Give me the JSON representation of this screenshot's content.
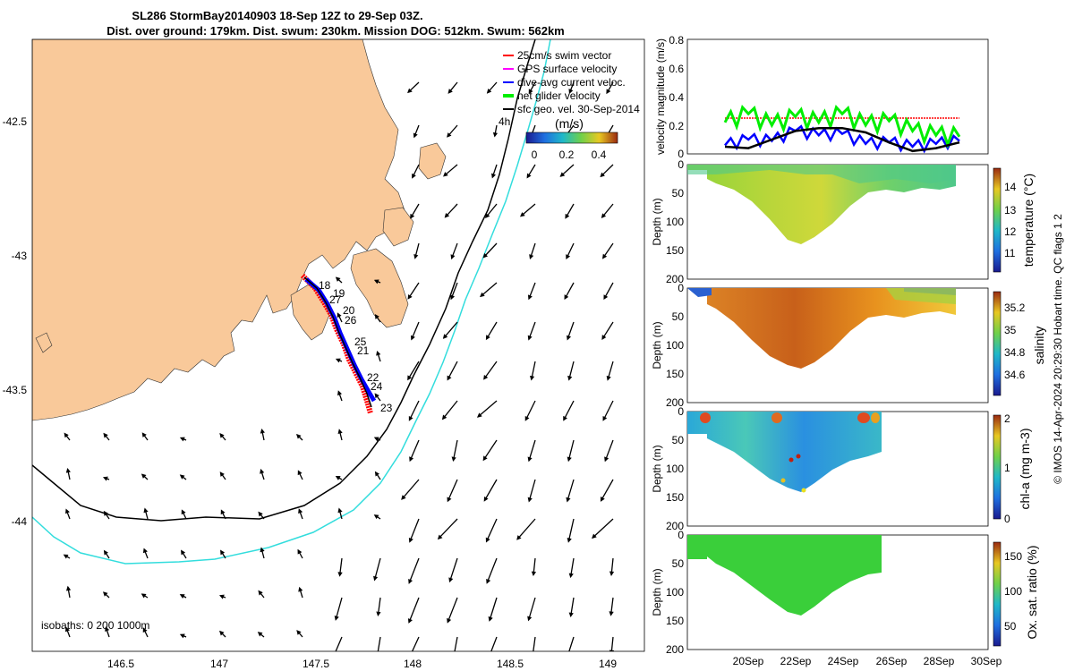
{
  "title": {
    "line1": "SL286 StormBay20140903 18-Sep 12Z to 29-Sep 03Z.",
    "line2": "Dist. over ground: 179km. Dist. swum: 230km. Mission DOG: 512km. Swum: 562km"
  },
  "colors": {
    "land": "#f9c99a",
    "swim_vector": "#ff0000",
    "gps_velocity": "#ff00ff",
    "current": "#0000ff",
    "net_velocity": "#00ee00",
    "geo_velocity": "#000000",
    "isobath_200": "#000000",
    "isobath_1000": "#33dddd"
  },
  "map": {
    "xticks": [
      "146.5",
      "147",
      "147.5",
      "148",
      "148.5",
      "149"
    ],
    "yticks": [
      "-42.5",
      "-43",
      "-43.5",
      "-44"
    ],
    "legend": [
      {
        "label": "25cm/s swim vector",
        "color": "#ff0000"
      },
      {
        "label": "GPS surface velocity",
        "color": "#ff00ff"
      },
      {
        "label": "dive-avg current veloc.",
        "color": "#0000ff"
      },
      {
        "label": "net glider velocity",
        "color": "#00ee00"
      },
      {
        "label": "sfc geo. vel. 30-Sep-2014",
        "color": "#000000"
      }
    ],
    "hours_label": "4h",
    "colorbar_unit": "(m/s)",
    "colorbar_ticks": [
      "0",
      "0.2",
      "0.4"
    ],
    "isobath_label": "isobaths: 0   200  1000m",
    "day_labels": [
      {
        "day": "18"
      },
      {
        "day": "19"
      },
      {
        "day": "27"
      },
      {
        "day": "20"
      },
      {
        "day": "26"
      },
      {
        "day": "25"
      },
      {
        "day": "21"
      },
      {
        "day": "22"
      },
      {
        "day": "24"
      },
      {
        "day": "23"
      }
    ]
  },
  "velocity_panel": {
    "ylabel": "velocity magnitude (m/s)",
    "yticks": [
      "0",
      "0.2",
      "0.4",
      "0.6",
      "0.8"
    ]
  },
  "section_panels": [
    {
      "ylabel": "Depth (m)",
      "cbar_label": "temperature (°C)",
      "cbar_ticks": [
        "14",
        "13",
        "12",
        "11"
      ]
    },
    {
      "ylabel": "Depth (m)",
      "cbar_label": "salinity",
      "cbar_ticks": [
        "35.2",
        "35",
        "34.8",
        "34.6"
      ]
    },
    {
      "ylabel": "Depth (m)",
      "cbar_label": "chl-a (mg m-3)",
      "cbar_ticks": [
        "2",
        "1",
        "0"
      ]
    },
    {
      "ylabel": "Depth (m)",
      "cbar_label": "Ox. sat. ratio (%)",
      "cbar_ticks": [
        "150",
        "100",
        "50"
      ]
    }
  ],
  "depth_ticks": [
    "0",
    "50",
    "100",
    "150",
    "200"
  ],
  "time_ticks": [
    "20Sep",
    "22Sep",
    "24Sep",
    "26Sep",
    "28Sep",
    "30Sep"
  ],
  "credit": "© IMOS 14-Apr-2024 20:29:30 Hobart time. QC flags 1  2",
  "chart_data": {
    "type": "line",
    "title": "SL286 StormBay20140903 18-Sep 12Z to 29-Sep 03Z.",
    "xlabel": "",
    "ylabel": "velocity magnitude (m/s)",
    "ylim": [
      0,
      0.8
    ],
    "x_dates": [
      "19Sep",
      "20Sep",
      "21Sep",
      "22Sep",
      "23Sep",
      "24Sep",
      "25Sep",
      "26Sep",
      "27Sep",
      "28Sep",
      "29Sep"
    ],
    "series": [
      {
        "name": "25cm/s swim vector",
        "values": [
          0.25,
          0.25,
          0.25,
          0.25,
          0.25,
          0.25,
          0.25,
          0.25,
          0.25,
          0.25,
          0.25
        ]
      },
      {
        "name": "dive-avg current veloc.",
        "values": [
          0.06,
          0.1,
          0.09,
          0.16,
          0.13,
          0.14,
          0.07,
          0.08,
          0.05,
          0.07,
          0.09
        ]
      },
      {
        "name": "net glider velocity",
        "values": [
          0.22,
          0.28,
          0.2,
          0.26,
          0.22,
          0.28,
          0.2,
          0.23,
          0.16,
          0.13,
          0.12
        ]
      },
      {
        "name": "sfc geo. vel. 30-Sep-2014",
        "values": [
          0.05,
          0.04,
          0.1,
          0.16,
          0.18,
          0.18,
          0.15,
          0.08,
          0.02,
          0.04,
          0.08
        ]
      }
    ]
  }
}
